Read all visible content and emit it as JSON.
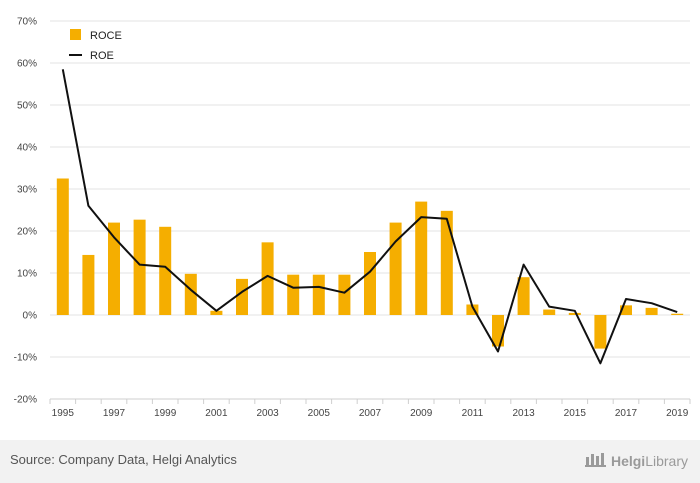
{
  "chart_data": {
    "type": "bar",
    "title": "",
    "xlabel": "",
    "ylabel": "",
    "ylim": [
      -20,
      70
    ],
    "y_ticks": [
      "70%",
      "60%",
      "50%",
      "40%",
      "30%",
      "20%",
      "10%",
      "0%",
      "-10%",
      "-20%"
    ],
    "y_tick_values": [
      70,
      60,
      50,
      40,
      30,
      20,
      10,
      0,
      -10,
      -20
    ],
    "categories": [
      "1995",
      "1996",
      "1997",
      "1998",
      "1999",
      "2000",
      "2001",
      "2002",
      "2003",
      "2004",
      "2005",
      "2006",
      "2007",
      "2008",
      "2009",
      "2010",
      "2011",
      "2012",
      "2013",
      "2014",
      "2015",
      "2016",
      "2017",
      "2018",
      "2019"
    ],
    "x_tick_labels": [
      "1995",
      "1997",
      "1999",
      "2001",
      "2003",
      "2005",
      "2007",
      "2009",
      "2011",
      "2013",
      "2015",
      "2017",
      "2019"
    ],
    "grid": true,
    "legend_position": "top-left",
    "series": [
      {
        "name": "ROCE",
        "type": "bar",
        "color": "#f5ae00",
        "values": [
          32.5,
          14.3,
          22.0,
          22.7,
          21.0,
          9.8,
          1.0,
          8.6,
          17.3,
          9.6,
          9.6,
          9.6,
          15.0,
          22.0,
          27.0,
          24.8,
          2.5,
          -7.5,
          9.0,
          1.3,
          0.5,
          -8.0,
          2.3,
          1.7,
          0.3
        ]
      },
      {
        "name": "ROE",
        "type": "line",
        "color": "#111111",
        "values": [
          58.5,
          26.0,
          18.5,
          12.0,
          11.5,
          6.0,
          1.0,
          5.5,
          9.3,
          6.5,
          6.7,
          5.3,
          10.3,
          17.5,
          23.3,
          22.9,
          2.0,
          -8.7,
          12.0,
          2.0,
          1.0,
          -11.5,
          3.8,
          2.8,
          0.7
        ]
      }
    ]
  },
  "footer": {
    "source": "Source: Company Data, Helgi Analytics",
    "brand_part1": "Helgi",
    "brand_part2": "Library"
  }
}
